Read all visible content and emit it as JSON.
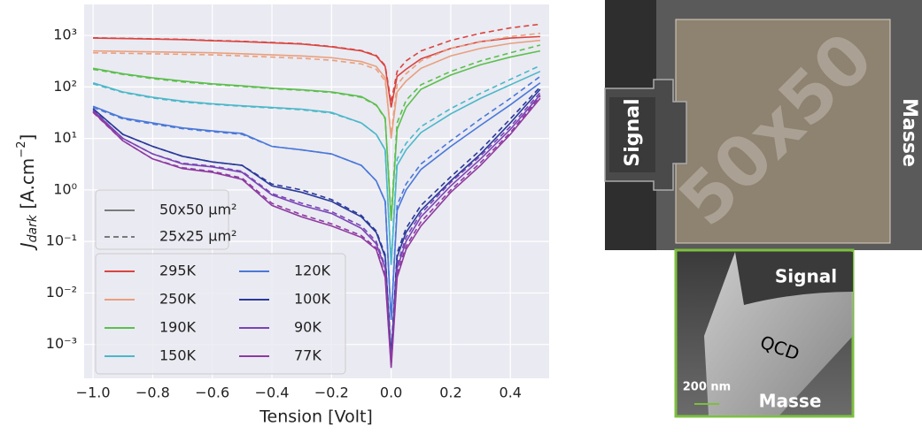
{
  "chart_data": {
    "type": "line",
    "ylabel": {
      "main": "J",
      "sub": "dark",
      "unit": " [A.cm",
      "sup": "−2",
      "close": "]"
    },
    "xlabel": "Tension [Volt]",
    "log_y": true,
    "grid": true,
    "legend_position": "lower left",
    "xlim": [
      -1.03,
      0.53
    ],
    "ylim": [
      0.00022,
      4000
    ],
    "xticks": [
      {
        "value": -1.0,
        "label": "−1.0"
      },
      {
        "value": -0.8,
        "label": "−0.8"
      },
      {
        "value": -0.6,
        "label": "−0.6"
      },
      {
        "value": -0.4,
        "label": "−0.4"
      },
      {
        "value": -0.2,
        "label": "−0.2"
      },
      {
        "value": 0,
        "label": "0.0"
      },
      0.2,
      0.4
    ],
    "yticks": [
      {
        "value": 0.001,
        "label": "10⁻³"
      },
      {
        "value": 0.01,
        "label": "10⁻²"
      },
      {
        "value": 0.1,
        "label": "10⁻¹"
      },
      {
        "value": 1,
        "label": "10⁰"
      },
      {
        "value": 10,
        "label": "10¹"
      },
      {
        "value": 100,
        "label": "10²"
      },
      {
        "value": 1000,
        "label": "10³"
      }
    ],
    "linestyles": [
      {
        "name": "50x50 µm²",
        "style": "solid"
      },
      {
        "name": "25x25 µm²",
        "style": "dashed"
      }
    ],
    "x": [
      -1.0,
      -0.9,
      -0.8,
      -0.7,
      -0.6,
      -0.5,
      -0.4,
      -0.3,
      -0.2,
      -0.1,
      -0.05,
      -0.02,
      0,
      0.02,
      0.05,
      0.1,
      0.2,
      0.3,
      0.4,
      0.5
    ],
    "series": [
      {
        "name": "295K",
        "color": "#d9453f",
        "values": [
          [
            890,
            870,
            850,
            830,
            790,
            760,
            720,
            680,
            600,
            500,
            400,
            250,
            40,
            160,
            220,
            350,
            560,
            760,
            890,
            950
          ],
          [
            900,
            880,
            860,
            840,
            800,
            770,
            730,
            690,
            610,
            510,
            410,
            260,
            50,
            200,
            320,
            500,
            800,
            1100,
            1400,
            1650
          ]
        ]
      },
      {
        "name": "250K",
        "color": "#e8a07e",
        "values": [
          [
            500,
            490,
            480,
            470,
            460,
            440,
            420,
            400,
            370,
            310,
            250,
            150,
            10,
            80,
            130,
            230,
            400,
            560,
            700,
            800
          ],
          [
            460,
            450,
            440,
            430,
            420,
            400,
            380,
            360,
            330,
            280,
            220,
            130,
            12,
            110,
            180,
            320,
            560,
            750,
            950,
            1100
          ]
        ]
      },
      {
        "name": "190K",
        "color": "#5cbf4e",
        "values": [
          [
            230,
            180,
            150,
            130,
            115,
            105,
            95,
            88,
            80,
            65,
            45,
            25,
            0.25,
            15,
            40,
            90,
            170,
            270,
            380,
            500
          ],
          [
            220,
            175,
            145,
            125,
            112,
            102,
            93,
            86,
            78,
            63,
            44,
            24,
            0.3,
            20,
            55,
            110,
            200,
            320,
            460,
            650
          ]
        ]
      },
      {
        "name": "150K",
        "color": "#4bb8c8",
        "values": [
          [
            120,
            80,
            63,
            53,
            47,
            43,
            40,
            37,
            32,
            20,
            12,
            6,
            0.035,
            3,
            6,
            13,
            30,
            60,
            110,
            200
          ],
          [
            115,
            78,
            61,
            51,
            46,
            42,
            39,
            36,
            31,
            20,
            12,
            6,
            0.04,
            4,
            8,
            17,
            38,
            75,
            140,
            260
          ]
        ]
      },
      {
        "name": "120K",
        "color": "#4a78d8",
        "values": [
          [
            42,
            25,
            20,
            16,
            14,
            12.5,
            7,
            6,
            5,
            3,
            1.5,
            0.6,
            0.003,
            0.4,
            1,
            2.5,
            7,
            18,
            45,
            120
          ],
          [
            40,
            24,
            19,
            15.5,
            13.5,
            12,
            7,
            6,
            5,
            3,
            1.5,
            0.6,
            0.003,
            0.5,
            1.3,
            3.2,
            9,
            24,
            60,
            160
          ]
        ]
      },
      {
        "name": "100K",
        "color": "#2b3a9a",
        "values": [
          [
            38,
            12,
            7,
            4.5,
            3.5,
            3,
            1.2,
            0.9,
            0.6,
            0.3,
            0.15,
            0.05,
            0.0006,
            0.05,
            0.15,
            0.4,
            1.5,
            5,
            20,
            90
          ],
          [
            37,
            12,
            7,
            4.5,
            3.5,
            3,
            1.3,
            1,
            0.65,
            0.32,
            0.16,
            0.055,
            0.0007,
            0.06,
            0.18,
            0.5,
            1.8,
            6,
            24,
            100
          ]
        ]
      },
      {
        "name": "90K",
        "color": "#7a44b5",
        "values": [
          [
            35,
            10,
            5,
            3.2,
            2.8,
            2.2,
            0.8,
            0.5,
            0.35,
            0.18,
            0.09,
            0.03,
            0.0004,
            0.03,
            0.1,
            0.3,
            1.2,
            4,
            15,
            70
          ],
          [
            34,
            10,
            5,
            3.3,
            2.9,
            2.3,
            0.85,
            0.55,
            0.38,
            0.2,
            0.1,
            0.033,
            0.00045,
            0.035,
            0.12,
            0.35,
            1.4,
            4.6,
            17,
            78
          ]
        ]
      },
      {
        "name": "77K",
        "color": "#8e3aa0",
        "values": [
          [
            33,
            9,
            4,
            2.6,
            2.2,
            1.6,
            0.5,
            0.3,
            0.2,
            0.12,
            0.07,
            0.02,
            0.00035,
            0.02,
            0.07,
            0.2,
            0.9,
            3,
            12,
            60
          ],
          [
            32,
            9,
            4,
            2.7,
            2.3,
            1.7,
            0.55,
            0.33,
            0.22,
            0.13,
            0.075,
            0.022,
            0.0004,
            0.024,
            0.08,
            0.24,
            1,
            3.4,
            13,
            66
          ]
        ]
      }
    ]
  },
  "micrograph": {
    "pad_label": "Signal",
    "ground_label": "Masse",
    "device_label": "50x50",
    "inset": {
      "top_label": "Signal",
      "device_label": "QCD",
      "scale_label": "200 nm",
      "bottom_label": "Masse"
    }
  }
}
